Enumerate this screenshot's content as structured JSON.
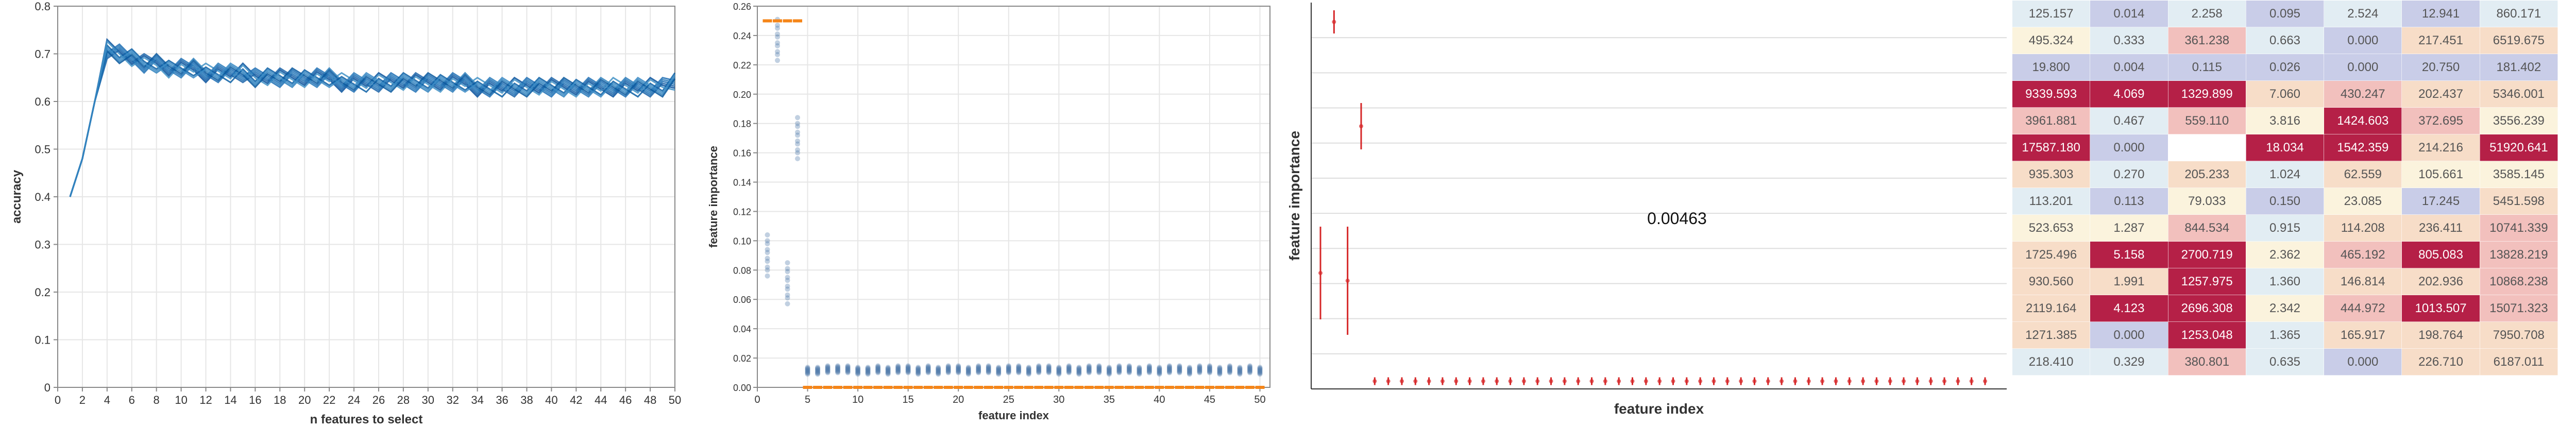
{
  "chart_data": [
    {
      "type": "line",
      "xlabel": "n features to select",
      "ylabel": "accuracy",
      "xlim": [
        0,
        50
      ],
      "ylim": [
        0,
        0.8
      ],
      "x_ticks": [
        "0",
        "2",
        "4",
        "6",
        "8",
        "10",
        "12",
        "14",
        "16",
        "18",
        "20",
        "22",
        "24",
        "26",
        "28",
        "30",
        "32",
        "34",
        "36",
        "38",
        "40",
        "42",
        "44",
        "46",
        "48",
        "50"
      ],
      "y_ticks": [
        "0",
        "0.1",
        "0.2",
        "0.3",
        "0.4",
        "0.5",
        "0.6",
        "0.7",
        "0.8"
      ],
      "grid": true,
      "n_series": 10,
      "x": [
        1,
        2,
        3,
        4,
        5,
        6,
        7,
        8,
        9,
        10,
        11,
        12,
        13,
        14,
        15,
        16,
        17,
        18,
        19,
        20,
        21,
        22,
        23,
        24,
        25,
        26,
        27,
        28,
        29,
        30,
        31,
        32,
        33,
        34,
        35,
        36,
        37,
        38,
        39,
        40,
        41,
        42,
        43,
        44,
        45,
        46,
        47,
        48,
        49,
        50
      ],
      "series": [
        {
          "values": [
            0.4,
            0.48,
            0.6,
            0.71,
            0.7,
            0.69,
            0.68,
            0.68,
            0.67,
            0.67,
            0.67,
            0.66,
            0.66,
            0.66,
            0.66,
            0.65,
            0.65,
            0.65,
            0.65,
            0.65,
            0.65,
            0.65,
            0.64,
            0.64,
            0.64,
            0.64,
            0.64,
            0.64,
            0.64,
            0.64,
            0.64,
            0.64,
            0.64,
            0.63,
            0.63,
            0.63,
            0.63,
            0.63,
            0.63,
            0.63,
            0.63,
            0.63,
            0.63,
            0.63,
            0.63,
            0.63,
            0.63,
            0.63,
            0.63,
            0.64
          ]
        }
      ]
    },
    {
      "type": "scatter",
      "xlabel": "feature index",
      "ylabel": "feature importance",
      "xlim": [
        0,
        51
      ],
      "ylim": [
        0,
        0.26
      ],
      "x_ticks": [
        "0",
        "5",
        "10",
        "15",
        "20",
        "25",
        "30",
        "35",
        "40",
        "45",
        "50"
      ],
      "y_ticks": [
        "0.00",
        "0.02",
        "0.04",
        "0.06",
        "0.08",
        "0.10",
        "0.12",
        "0.14",
        "0.16",
        "0.18",
        "0.20",
        "0.22",
        "0.24",
        "0.26"
      ],
      "grid": true,
      "series": [
        {
          "name": "",
          "color": "#4c78a8",
          "x": [
            1,
            2,
            3,
            4,
            5,
            6,
            7,
            8,
            9,
            10,
            11,
            12,
            13,
            14,
            15,
            16,
            17,
            18,
            19,
            20,
            21,
            22,
            23,
            24,
            25,
            26,
            27,
            28,
            29,
            30,
            31,
            32,
            33,
            34,
            35,
            36,
            37,
            38,
            39,
            40,
            41,
            42,
            43,
            44,
            45,
            46,
            47,
            48,
            49,
            50
          ],
          "values": [
            0.088,
            0.235,
            0.069,
            0.168,
            0.011,
            0.011,
            0.012,
            0.012,
            0.012,
            0.011,
            0.011,
            0.012,
            0.011,
            0.012,
            0.012,
            0.011,
            0.012,
            0.011,
            0.012,
            0.012,
            0.011,
            0.012,
            0.012,
            0.011,
            0.012,
            0.012,
            0.011,
            0.012,
            0.012,
            0.011,
            0.012,
            0.011,
            0.012,
            0.012,
            0.011,
            0.012,
            0.012,
            0.011,
            0.012,
            0.011,
            0.012,
            0.012,
            0.011,
            0.012,
            0.012,
            0.011,
            0.012,
            0.011,
            0.012,
            0.011
          ]
        },
        {
          "name": "",
          "color": "#f58518",
          "x": [
            1,
            2,
            3,
            4,
            5,
            6,
            7,
            8,
            9,
            10,
            11,
            12,
            13,
            14,
            15,
            16,
            17,
            18,
            19,
            20,
            21,
            22,
            23,
            24,
            25,
            26,
            27,
            28,
            29,
            30,
            31,
            32,
            33,
            34,
            35,
            36,
            37,
            38,
            39,
            40,
            41,
            42,
            43,
            44,
            45,
            46,
            47,
            48,
            49,
            50
          ],
          "values": [
            0.25,
            0.25,
            0.25,
            0.25,
            0,
            0,
            0,
            0,
            0,
            0,
            0,
            0,
            0,
            0,
            0,
            0,
            0,
            0,
            0,
            0,
            0,
            0,
            0,
            0,
            0,
            0,
            0,
            0,
            0,
            0,
            0,
            0,
            0,
            0,
            0,
            0,
            0,
            0,
            0,
            0,
            0,
            0,
            0,
            0,
            0,
            0,
            0,
            0,
            0,
            0
          ]
        }
      ]
    },
    {
      "type": "scatter",
      "xlabel": "feature index",
      "ylabel": "feature importance",
      "annotation": "0.00463",
      "points": [
        {
          "x": 1,
          "y": 0.3,
          "err": 0.12
        },
        {
          "x": 2,
          "y": 0.95,
          "err": 0.03
        },
        {
          "x": 3,
          "y": 0.28,
          "err": 0.14
        },
        {
          "x": 4,
          "y": 0.68,
          "err": 0.06
        },
        {
          "x": 5,
          "y": 0.02,
          "err": 0.01
        },
        {
          "x": 6,
          "y": 0.02,
          "err": 0.01
        },
        {
          "x": 7,
          "y": 0.02,
          "err": 0.01
        },
        {
          "x": 8,
          "y": 0.02,
          "err": 0.01
        },
        {
          "x": 9,
          "y": 0.02,
          "err": 0.01
        },
        {
          "x": 10,
          "y": 0.02,
          "err": 0.01
        },
        {
          "x": 11,
          "y": 0.02,
          "err": 0.01
        },
        {
          "x": 12,
          "y": 0.02,
          "err": 0.01
        },
        {
          "x": 13,
          "y": 0.02,
          "err": 0.01
        },
        {
          "x": 14,
          "y": 0.02,
          "err": 0.01
        },
        {
          "x": 15,
          "y": 0.02,
          "err": 0.01
        },
        {
          "x": 16,
          "y": 0.02,
          "err": 0.01
        },
        {
          "x": 17,
          "y": 0.02,
          "err": 0.01
        },
        {
          "x": 18,
          "y": 0.02,
          "err": 0.01
        },
        {
          "x": 19,
          "y": 0.02,
          "err": 0.01
        },
        {
          "x": 20,
          "y": 0.02,
          "err": 0.01
        },
        {
          "x": 21,
          "y": 0.02,
          "err": 0.01
        },
        {
          "x": 22,
          "y": 0.02,
          "err": 0.01
        },
        {
          "x": 23,
          "y": 0.02,
          "err": 0.01
        },
        {
          "x": 24,
          "y": 0.02,
          "err": 0.01
        },
        {
          "x": 25,
          "y": 0.02,
          "err": 0.01
        },
        {
          "x": 26,
          "y": 0.02,
          "err": 0.01
        },
        {
          "x": 27,
          "y": 0.02,
          "err": 0.01
        },
        {
          "x": 28,
          "y": 0.02,
          "err": 0.01
        },
        {
          "x": 29,
          "y": 0.02,
          "err": 0.01
        },
        {
          "x": 30,
          "y": 0.02,
          "err": 0.01
        },
        {
          "x": 31,
          "y": 0.02,
          "err": 0.01
        },
        {
          "x": 32,
          "y": 0.02,
          "err": 0.01
        },
        {
          "x": 33,
          "y": 0.02,
          "err": 0.01
        },
        {
          "x": 34,
          "y": 0.02,
          "err": 0.01
        },
        {
          "x": 35,
          "y": 0.02,
          "err": 0.01
        },
        {
          "x": 36,
          "y": 0.02,
          "err": 0.01
        },
        {
          "x": 37,
          "y": 0.02,
          "err": 0.01
        },
        {
          "x": 38,
          "y": 0.02,
          "err": 0.01
        },
        {
          "x": 39,
          "y": 0.02,
          "err": 0.01
        },
        {
          "x": 40,
          "y": 0.02,
          "err": 0.01
        },
        {
          "x": 41,
          "y": 0.02,
          "err": 0.01
        },
        {
          "x": 42,
          "y": 0.02,
          "err": 0.01
        },
        {
          "x": 43,
          "y": 0.02,
          "err": 0.01
        },
        {
          "x": 44,
          "y": 0.02,
          "err": 0.01
        },
        {
          "x": 45,
          "y": 0.02,
          "err": 0.01
        },
        {
          "x": 46,
          "y": 0.02,
          "err": 0.01
        },
        {
          "x": 47,
          "y": 0.02,
          "err": 0.01
        },
        {
          "x": 48,
          "y": 0.02,
          "err": 0.01
        },
        {
          "x": 49,
          "y": 0.02,
          "err": 0.01
        },
        {
          "x": 50,
          "y": 0.02,
          "err": 0.01
        }
      ],
      "color": "#d62728",
      "grid": true
    },
    {
      "type": "table",
      "rows": [
        [
          "125.157",
          "0.014",
          "2.258",
          "0.095",
          "2.524",
          "12.941",
          "860.171"
        ],
        [
          "495.324",
          "0.333",
          "361.238",
          "0.663",
          "0.000",
          "217.451",
          "6519.675"
        ],
        [
          "19.800",
          "0.004",
          "0.115",
          "0.026",
          "0.000",
          "20.750",
          "181.402"
        ],
        [
          "9339.593",
          "4.069",
          "1329.899",
          "7.060",
          "430.247",
          "202.437",
          "5346.001"
        ],
        [
          "3961.881",
          "0.467",
          "559.110",
          "3.816",
          "1424.603",
          "372.695",
          "3556.239"
        ],
        [
          "17587.180",
          "0.000",
          "",
          "18.034",
          "1542.359",
          "214.216",
          "51920.641"
        ],
        [
          "935.303",
          "0.270",
          "205.233",
          "1.024",
          "62.559",
          "105.661",
          "3585.145"
        ],
        [
          "113.201",
          "0.113",
          "79.033",
          "0.150",
          "23.085",
          "17.245",
          "5451.598"
        ],
        [
          "523.653",
          "1.287",
          "844.534",
          "0.915",
          "114.208",
          "236.411",
          "10741.339"
        ],
        [
          "1725.496",
          "5.158",
          "2700.719",
          "2.362",
          "465.192",
          "805.083",
          "13828.219"
        ],
        [
          "930.560",
          "1.991",
          "1257.975",
          "1.360",
          "146.814",
          "202.936",
          "10868.238"
        ],
        [
          "2119.164",
          "4.123",
          "2696.308",
          "2.342",
          "444.972",
          "1013.507",
          "15071.323"
        ],
        [
          "1271.385",
          "0.000",
          "1253.048",
          "1.365",
          "165.917",
          "198.764",
          "7950.708"
        ],
        [
          "218.410",
          "0.329",
          "380.801",
          "0.635",
          "0.000",
          "226.710",
          "6187.011"
        ]
      ]
    }
  ]
}
